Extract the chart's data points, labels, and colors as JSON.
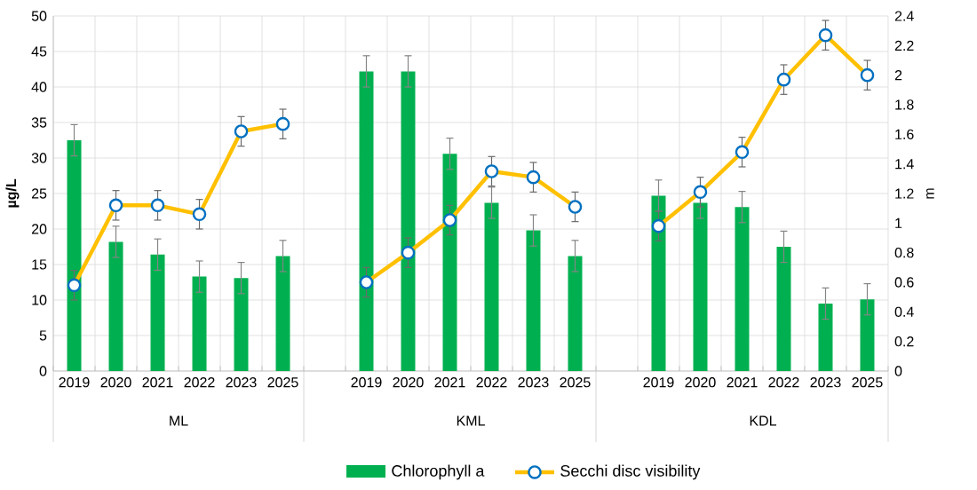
{
  "chart_data": {
    "type": "bar",
    "categories": [
      "2019",
      "2020",
      "2021",
      "2022",
      "2023",
      "2025",
      null,
      "2019",
      "2020",
      "2021",
      "2022",
      "2023",
      "2025",
      null,
      "2019",
      "2020",
      "2021",
      "2022",
      "2023",
      "2025"
    ],
    "series": [
      {
        "name": "Chlorophyll a",
        "color": "#00b050",
        "values": [
          32.5,
          18.2,
          16.4,
          13.3,
          13.1,
          16.2,
          null,
          42.2,
          42.2,
          30.6,
          23.7,
          19.8,
          16.2,
          null,
          24.7,
          23.7,
          23.1,
          17.5,
          9.5,
          10.1
        ],
        "errors": [
          2.2,
          2.2,
          2.2,
          2.2,
          2.2,
          2.2,
          null,
          2.2,
          2.2,
          2.2,
          2.2,
          2.2,
          2.2,
          null,
          2.2,
          2.2,
          2.2,
          2.2,
          2.2,
          2.2
        ]
      },
      {
        "name": "Secchi disc visibility",
        "type": "line",
        "axis": "y2",
        "color": "#ffc000",
        "values": [
          0.58,
          1.12,
          1.12,
          1.06,
          1.62,
          1.67,
          null,
          0.6,
          0.8,
          1.02,
          1.35,
          1.31,
          1.11,
          null,
          0.98,
          1.21,
          1.48,
          1.97,
          2.27,
          2.0
        ],
        "errors": [
          0.1,
          0.1,
          0.1,
          0.1,
          0.1,
          0.1,
          null,
          0.1,
          0.1,
          0.1,
          0.1,
          0.1,
          0.1,
          null,
          0.1,
          0.1,
          0.1,
          0.1,
          0.1,
          0.1
        ]
      }
    ],
    "annotations": [
      "ML",
      "KML",
      "KDL"
    ],
    "ylabel": "µg/L",
    "y2label": "m",
    "ylim": [
      0,
      50
    ],
    "yticks": [
      0,
      5,
      10,
      15,
      20,
      25,
      30,
      35,
      40,
      45,
      50
    ],
    "y2lim": [
      0,
      2.4
    ],
    "y2ticks": [
      0,
      0.2,
      0.4,
      0.6,
      0.8,
      1,
      1.2,
      1.4,
      1.6,
      1.8,
      2,
      2.2,
      2.4
    ],
    "grid": true,
    "legend": "bottom",
    "marker": "circle",
    "line_style": "solid"
  }
}
